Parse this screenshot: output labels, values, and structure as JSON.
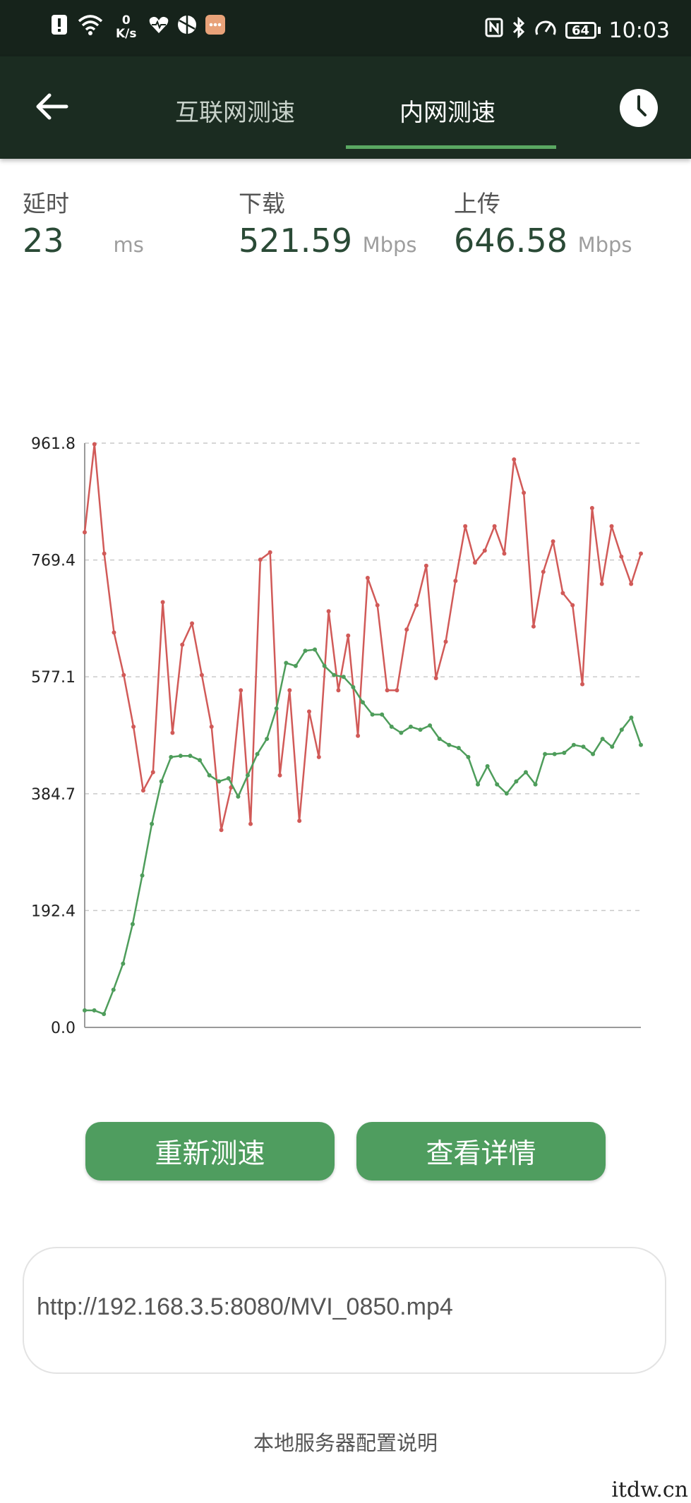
{
  "status_bar": {
    "net_speed_value": "0",
    "net_speed_unit": "K/s",
    "battery": "64",
    "time": "10:03",
    "icons": [
      "alert-icon",
      "wifi-icon",
      "heart-health-icon",
      "app-icon",
      "message-icon",
      "nfc-icon",
      "bluetooth-icon",
      "speed-icon",
      "battery-icon"
    ]
  },
  "appbar": {
    "tabs": [
      {
        "label": "互联网测速",
        "selected": false
      },
      {
        "label": "内网测速",
        "selected": true
      }
    ],
    "accent": "#5aa862"
  },
  "metrics": {
    "latency": {
      "label": "延时",
      "value": "23",
      "unit": "ms"
    },
    "download": {
      "label": "下载",
      "value": "521.59",
      "unit": "Mbps"
    },
    "upload": {
      "label": "上传",
      "value": "646.58",
      "unit": "Mbps"
    }
  },
  "chart_data": {
    "type": "line",
    "y_ticks": [
      "961.8",
      "769.4",
      "577.1",
      "384.7",
      "192.4",
      "0.0"
    ],
    "ylim": [
      0,
      961.8
    ],
    "grid": "dashed horizontal",
    "series": [
      {
        "color": "#d15a58",
        "values": [
          815,
          960,
          780,
          650,
          580,
          495,
          390,
          420,
          700,
          485,
          630,
          665,
          580,
          495,
          325,
          395,
          555,
          335,
          770,
          782,
          415,
          555,
          340,
          520,
          445,
          685,
          555,
          645,
          480,
          740,
          695,
          555,
          555,
          655,
          695,
          760,
          575,
          635,
          735,
          825,
          765,
          785,
          825,
          780,
          935,
          880,
          660,
          750,
          800,
          715,
          695,
          565,
          855,
          730,
          825,
          775,
          730,
          780
        ]
      },
      {
        "color": "#4e9d5b",
        "values": [
          28,
          28,
          22,
          62,
          105,
          170,
          250,
          335,
          405,
          445,
          447,
          447,
          440,
          415,
          405,
          410,
          380,
          415,
          450,
          475,
          525,
          600,
          595,
          620,
          622,
          595,
          580,
          577,
          560,
          535,
          515,
          515,
          495,
          485,
          495,
          490,
          497,
          475,
          465,
          460,
          445,
          400,
          430,
          400,
          385,
          405,
          420,
          400,
          450,
          450,
          452,
          465,
          462,
          450,
          475,
          462,
          490,
          510,
          465
        ]
      }
    ]
  },
  "buttons": {
    "retest": "重新测速",
    "details": "查看详情"
  },
  "url": "http://192.168.3.5:8080/MVI_0850.mp4",
  "config_link": "本地服务器配置说明",
  "watermark": "itdw.cn"
}
